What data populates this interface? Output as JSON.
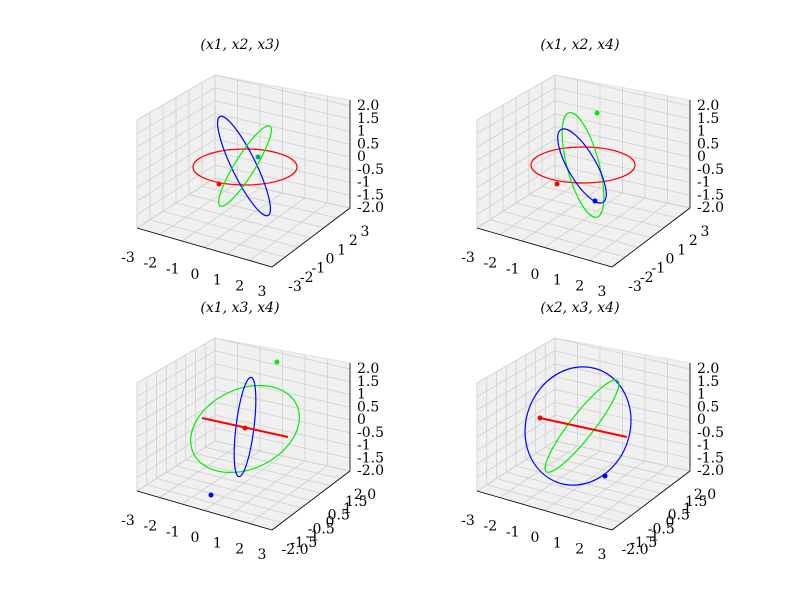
{
  "chart_data": [
    {
      "type": "line3d",
      "title": "(x1, x2, x3)",
      "xticks": [
        -3,
        -2,
        -1,
        0,
        1,
        2,
        3
      ],
      "yticks": [
        -3,
        -2,
        -1,
        0,
        1,
        2,
        3
      ],
      "zticks": [
        {
          "value": -2,
          "label": "-2.0"
        },
        -1.5,
        -1,
        -0.5,
        0,
        0.5,
        1,
        1.5,
        {
          "value": 2,
          "label": "2.0"
        }
      ]
    },
    {
      "type": "line3d",
      "title": "(x1, x2, x4)",
      "xticks": [
        -3,
        -2,
        -1,
        0,
        1,
        2,
        3
      ],
      "yticks": [
        -3,
        -2,
        -1,
        0,
        1,
        2,
        3
      ],
      "zticks": [
        {
          "value": -2,
          "label": "-2.0"
        },
        -1.5,
        -1,
        -0.5,
        0,
        0.5,
        1,
        1.5,
        {
          "value": 2,
          "label": "2.0"
        }
      ]
    },
    {
      "type": "line3d",
      "title": "(x1, x3, x4)",
      "xticks": [
        -3,
        -2,
        -1,
        0,
        1,
        2,
        3
      ],
      "yticks": [
        {
          "value": -2,
          "label": "-2.0"
        },
        -1.5,
        -1,
        -0.5,
        0,
        0.5,
        1,
        1.5,
        {
          "value": 2,
          "label": "2.0"
        }
      ],
      "zticks": [
        {
          "value": -2,
          "label": "-2.0"
        },
        -1.5,
        -1,
        -0.5,
        0,
        0.5,
        1,
        1.5,
        {
          "value": 2,
          "label": "2.0"
        }
      ]
    },
    {
      "type": "line3d",
      "title": "(x2, x3, x4)",
      "xticks": [
        -3,
        -2,
        -1,
        0,
        1,
        2,
        3
      ],
      "yticks": [
        {
          "value": -2,
          "label": "-2.0"
        },
        -1.5,
        -1,
        -0.5,
        0,
        0.5,
        1,
        1.5,
        {
          "value": 2,
          "label": "2.0"
        }
      ],
      "zticks": [
        {
          "value": -2,
          "label": "-2.0"
        },
        -1.5,
        -1,
        -0.5,
        0,
        0.5,
        1,
        1.5,
        {
          "value": 2,
          "label": "2.0"
        }
      ]
    }
  ]
}
